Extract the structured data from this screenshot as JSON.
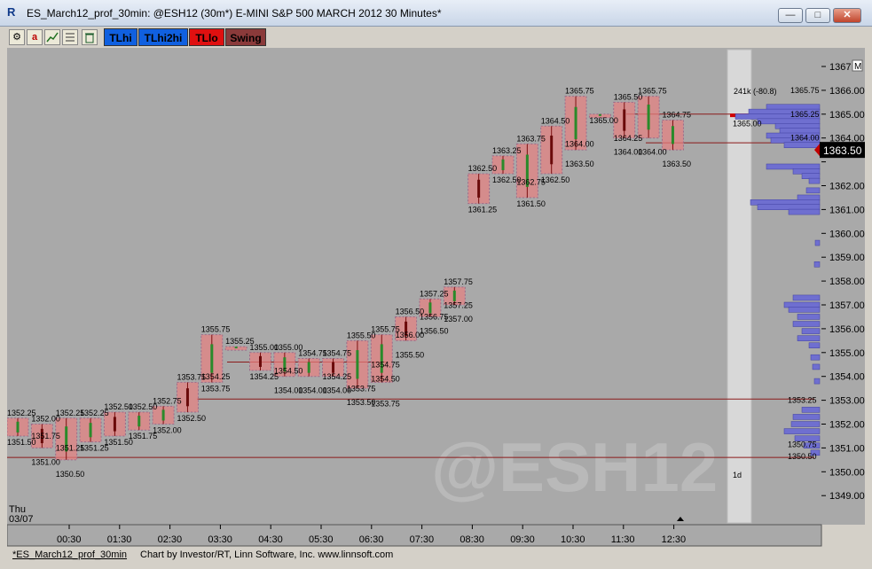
{
  "window": {
    "title": "ES_March12_prof_30min: @ESH12 (30m*) E-MINI S&P 500 MARCH 2012 30 Minutes*",
    "app_icon": "R"
  },
  "toolbar": {
    "icons": [
      "settings-icon",
      "a-icon",
      "chart-icon",
      "list-icon",
      "trash-icon"
    ],
    "icon_glyphs": {
      "a": "a"
    },
    "buttons": [
      {
        "label": "TLhi",
        "color": "#1060e0"
      },
      {
        "label": "TLhi2hi",
        "color": "#1060e0"
      },
      {
        "label": "TLlo",
        "color": "#e01010"
      },
      {
        "label": "Swing",
        "color": "#8a3a3a"
      }
    ]
  },
  "chart": {
    "watermark": "@ESH12",
    "day_label": "Thu",
    "date_label": "03/07",
    "time_labels": [
      "00:30",
      "01:30",
      "02:30",
      "03:30",
      "04:30",
      "05:30",
      "06:30",
      "07:30",
      "08:30",
      "09:30",
      "10:30",
      "11:30",
      "12:30"
    ],
    "price_axis": [
      1367,
      1366,
      1365,
      1364,
      1363,
      1362,
      1361,
      1360,
      1359,
      1358,
      1357,
      1356,
      1355,
      1354,
      1353,
      1352,
      1351,
      1350,
      1349
    ],
    "price_axis_labels": [
      "1367.",
      "1366.00",
      "1365.00",
      "1364.00",
      "1363.50",
      "1362.00",
      "1361.00",
      "1360.00",
      "1359.00",
      "1358.00",
      "1357.00",
      "1356.00",
      "1355.00",
      "1354.00",
      "1353.00",
      "1352.00",
      "1351.00",
      "1350.00",
      "1349.00"
    ],
    "current_price": "1363.50",
    "m_badge": "M",
    "profile_header": "241k (-80.8)",
    "profile_period": "1d",
    "profile_levels": {
      "high": "1365.75",
      "vah": "1365.25",
      "poc_left": "1365.00",
      "val": "1364.00",
      "low_va": "1353.25",
      "lowa": "1350.75",
      "lowb": "1350.50"
    },
    "bar_labels": [
      {
        "t": "1352.25",
        "p": 1352.25,
        "i": 0,
        "pos": "above"
      },
      {
        "t": "1352.00",
        "p": 1352.0,
        "i": 1,
        "pos": "above"
      },
      {
        "t": "1351.75",
        "p": 1351.75,
        "i": 1,
        "pos": "below"
      },
      {
        "t": "1351.50",
        "p": 1351.5,
        "i": 0,
        "pos": "below"
      },
      {
        "t": "1351.25",
        "p": 1351.25,
        "i": 2,
        "pos": "below"
      },
      {
        "t": "1351.00",
        "p": 1351.0,
        "i": 1,
        "pos": "below2"
      },
      {
        "t": "1352.25",
        "p": 1352.25,
        "i": 2,
        "pos": "above"
      },
      {
        "t": "1350.50",
        "p": 1350.5,
        "i": 2,
        "pos": "below2"
      },
      {
        "t": "1352.25",
        "p": 1352.25,
        "i": 3,
        "pos": "above"
      },
      {
        "t": "1351.25",
        "p": 1351.25,
        "i": 3,
        "pos": "below"
      },
      {
        "t": "1352.50",
        "p": 1352.5,
        "i": 4,
        "pos": "above"
      },
      {
        "t": "1351.50",
        "p": 1351.5,
        "i": 4,
        "pos": "below"
      },
      {
        "t": "1351.75",
        "p": 1351.75,
        "i": 5,
        "pos": "below"
      },
      {
        "t": "1352.50",
        "p": 1352.5,
        "i": 5,
        "pos": "above"
      },
      {
        "t": "1352.00",
        "p": 1352.0,
        "i": 6,
        "pos": "below"
      },
      {
        "t": "1352.75",
        "p": 1352.75,
        "i": 6,
        "pos": "above"
      },
      {
        "t": "1352.50",
        "p": 1352.5,
        "i": 7,
        "pos": "below"
      },
      {
        "t": "1353.75",
        "p": 1353.75,
        "i": 7,
        "pos": "above"
      },
      {
        "t": "1353.75",
        "p": 1353.75,
        "i": 8,
        "pos": "below"
      },
      {
        "t": "1355.75",
        "p": 1355.75,
        "i": 8,
        "pos": "above"
      },
      {
        "t": "1355.25",
        "p": 1355.25,
        "i": 9,
        "pos": "above"
      },
      {
        "t": "1354.25",
        "p": 1354.25,
        "i": 8,
        "pos": "below"
      },
      {
        "t": "1355.00",
        "p": 1355.0,
        "i": 10,
        "pos": "above"
      },
      {
        "t": "1355.00",
        "p": 1355.0,
        "i": 11,
        "pos": "above"
      },
      {
        "t": "1354.25",
        "p": 1354.25,
        "i": 10,
        "pos": "below"
      },
      {
        "t": "1354.50",
        "p": 1354.5,
        "i": 11,
        "pos": "below"
      },
      {
        "t": "1354.00",
        "p": 1354.0,
        "i": 11,
        "pos": "below2"
      },
      {
        "t": "1354.75",
        "p": 1354.75,
        "i": 12,
        "pos": "above"
      },
      {
        "t": "1354.75",
        "p": 1354.75,
        "i": 13,
        "pos": "above"
      },
      {
        "t": "1354.00",
        "p": 1354.0,
        "i": 12,
        "pos": "below2"
      },
      {
        "t": "1354.00",
        "p": 1354.0,
        "i": 13,
        "pos": "below2"
      },
      {
        "t": "1354.25",
        "p": 1354.25,
        "i": 13,
        "pos": "below"
      },
      {
        "t": "1355.50",
        "p": 1355.5,
        "i": 14,
        "pos": "above"
      },
      {
        "t": "1353.75",
        "p": 1353.75,
        "i": 14,
        "pos": "below"
      },
      {
        "t": "1353.50",
        "p": 1353.5,
        "i": 14,
        "pos": "below2"
      },
      {
        "t": "1355.75",
        "p": 1355.75,
        "i": 15,
        "pos": "above"
      },
      {
        "t": "1354.75",
        "p": 1354.75,
        "i": 15,
        "pos": "below"
      },
      {
        "t": "1354.50",
        "p": 1354.5,
        "i": 15,
        "pos": "below2"
      },
      {
        "t": "1353.75",
        "p": 1353.75,
        "i": 15,
        "pos": "below3"
      },
      {
        "t": "1356.50",
        "p": 1356.5,
        "i": 16,
        "pos": "above"
      },
      {
        "t": "1356.00",
        "p": 1356.0,
        "i": 16,
        "pos": "below"
      },
      {
        "t": "1355.50",
        "p": 1355.5,
        "i": 16,
        "pos": "below2"
      },
      {
        "t": "1357.25",
        "p": 1357.25,
        "i": 17,
        "pos": "above"
      },
      {
        "t": "1356.75",
        "p": 1356.75,
        "i": 17,
        "pos": "below"
      },
      {
        "t": "1356.50",
        "p": 1356.5,
        "i": 17,
        "pos": "below2"
      },
      {
        "t": "1357.75",
        "p": 1357.75,
        "i": 18,
        "pos": "above"
      },
      {
        "t": "1357.25",
        "p": 1357.25,
        "i": 18,
        "pos": "below"
      },
      {
        "t": "1357.00",
        "p": 1357.0,
        "i": 18,
        "pos": "below2"
      },
      {
        "t": "1362.50",
        "p": 1362.5,
        "i": 19,
        "pos": "above"
      },
      {
        "t": "1361.25",
        "p": 1361.25,
        "i": 19,
        "pos": "below"
      },
      {
        "t": "1363.25",
        "p": 1363.25,
        "i": 20,
        "pos": "above"
      },
      {
        "t": "1362.50",
        "p": 1362.5,
        "i": 20,
        "pos": "below"
      },
      {
        "t": "1361.50",
        "p": 1361.5,
        "i": 21,
        "pos": "below"
      },
      {
        "t": "1363.75",
        "p": 1363.75,
        "i": 21,
        "pos": "above"
      },
      {
        "t": "1362.75",
        "p": 1362.75,
        "i": 21,
        "pos": "below2"
      },
      {
        "t": "1362.50",
        "p": 1362.5,
        "i": 22,
        "pos": "below"
      },
      {
        "t": "1364.50",
        "p": 1364.5,
        "i": 22,
        "pos": "above"
      },
      {
        "t": "1364.00",
        "p": 1364.0,
        "i": 23,
        "pos": "below"
      },
      {
        "t": "1363.50",
        "p": 1363.5,
        "i": 23,
        "pos": "below2"
      },
      {
        "t": "1365.75",
        "p": 1365.75,
        "i": 23,
        "pos": "above"
      },
      {
        "t": "1365.00",
        "p": 1365.0,
        "i": 24,
        "pos": "below"
      },
      {
        "t": "1365.50",
        "p": 1365.5,
        "i": 25,
        "pos": "above"
      },
      {
        "t": "1364.25",
        "p": 1364.25,
        "i": 25,
        "pos": "below"
      },
      {
        "t": "1364.00",
        "p": 1364.0,
        "i": 25,
        "pos": "below2"
      },
      {
        "t": "1365.75",
        "p": 1365.75,
        "i": 26,
        "pos": "above"
      },
      {
        "t": "1364.00",
        "p": 1364.0,
        "i": 26,
        "pos": "below2"
      },
      {
        "t": "1364.75",
        "p": 1364.75,
        "i": 27,
        "pos": "above"
      },
      {
        "t": "1363.50",
        "p": 1363.5,
        "i": 27,
        "pos": "below2"
      }
    ]
  },
  "status": {
    "tab_label": "*ES_March12_prof_30min",
    "credit": "Chart by Investor/RT, Linn Software, Inc. www.linnsoft.com"
  }
}
